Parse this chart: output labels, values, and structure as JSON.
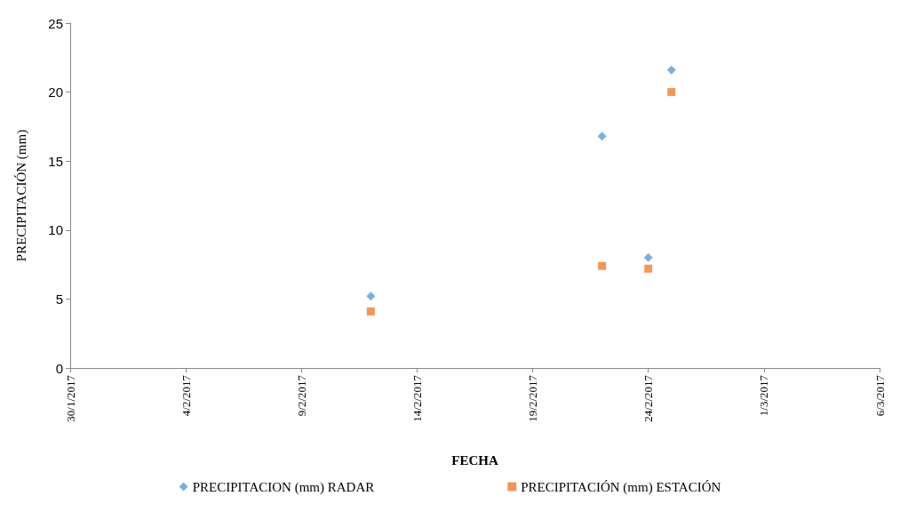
{
  "chart_data": {
    "type": "scatter",
    "xlabel": "FECHA",
    "ylabel": "PRECIPITACIÓN (mm)",
    "xlim": [
      "2017-01-30",
      "2017-03-06"
    ],
    "xticks": [
      {
        "value": "2017-01-30",
        "label": "30/1/2017"
      },
      {
        "value": "2017-02-04",
        "label": "4/2/2017"
      },
      {
        "value": "2017-02-09",
        "label": "9/2/2017"
      },
      {
        "value": "2017-02-14",
        "label": "14/2/2017"
      },
      {
        "value": "2017-02-19",
        "label": "19/2/2017"
      },
      {
        "value": "2017-02-24",
        "label": "24/2/2017"
      },
      {
        "value": "2017-03-01",
        "label": "1/3/2017"
      },
      {
        "value": "2017-03-06",
        "label": "6/3/2017"
      }
    ],
    "ylim": [
      0,
      25
    ],
    "yticks": [
      0,
      5,
      10,
      15,
      20,
      25
    ],
    "grid": false,
    "legend": "bottom",
    "x": [
      "2017-02-12",
      "2017-02-22",
      "2017-02-24",
      "2017-02-25"
    ],
    "series": [
      {
        "name": "PRECIPITACION (mm) RADAR",
        "color": "#5b9bd5",
        "marker": "diamond",
        "values": [
          5.2,
          16.8,
          8.0,
          21.6
        ]
      },
      {
        "name": "PRECIPITACIÓN (mm) ESTACIÓN",
        "color": "#ed7d31",
        "marker": "square",
        "values": [
          4.1,
          7.4,
          7.2,
          20.0
        ]
      }
    ]
  }
}
